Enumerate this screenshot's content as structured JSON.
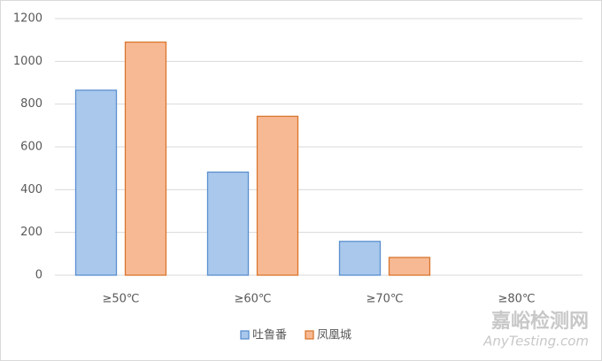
{
  "chart_data": {
    "type": "bar",
    "categories": [
      "≥50℃",
      "≥60℃",
      "≥70℃",
      "≥80℃"
    ],
    "series": [
      {
        "name": "吐鲁番",
        "color": "#a9c8ec",
        "values": [
          865,
          482,
          158,
          0
        ]
      },
      {
        "name": "凤凰城",
        "color": "#f7b994",
        "values": [
          1090,
          743,
          83,
          0
        ]
      }
    ],
    "ylim": [
      0,
      1200
    ],
    "yticks": [
      0,
      200,
      400,
      600,
      800,
      1000,
      1200
    ],
    "grid": true,
    "legend": "bottom"
  },
  "watermark": {
    "title": "嘉峪检测网",
    "subtitle": "AnyTesting.com"
  }
}
